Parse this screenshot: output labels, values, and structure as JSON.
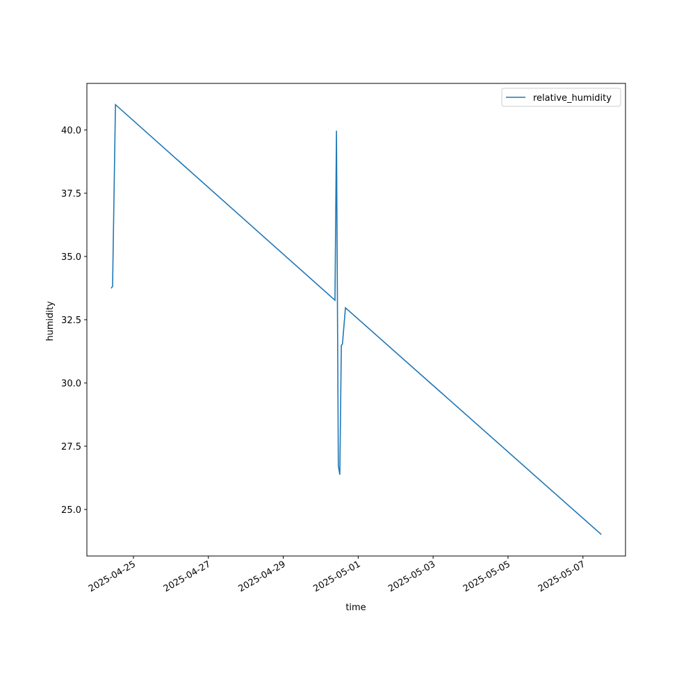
{
  "chart_data": {
    "type": "line",
    "x_label": "time",
    "y_label": "humidity",
    "x": [
      "2025-04-24T09:45",
      "2025-04-24T10:38",
      "2025-04-24T12:29",
      "2025-04-30T09:07",
      "2025-04-30T10:05",
      "2025-04-30T11:17",
      "2025-04-30T12:14",
      "2025-04-30T13:12",
      "2025-04-30T13:55",
      "2025-04-30T15:50",
      "2025-05-07T11:46"
    ],
    "series": [
      {
        "name": "relative_humidity",
        "color": "#1f77b4",
        "values": [
          33.74,
          33.82,
          41.0,
          33.27,
          39.97,
          26.73,
          26.37,
          31.48,
          31.54,
          32.97,
          24.01
        ]
      }
    ],
    "xlim": [
      "2025-04-23T18:10",
      "2025-05-08T03:16"
    ],
    "xticks": [
      "2025-04-25",
      "2025-04-27",
      "2025-04-29",
      "2025-05-01",
      "2025-05-03",
      "2025-05-05",
      "2025-05-07"
    ],
    "ylim": [
      23.16,
      41.84
    ],
    "yticks": [
      {
        "value": 25,
        "label": "25.0"
      },
      {
        "value": 27.5,
        "label": "27.5"
      },
      {
        "value": 30,
        "label": "30.0"
      },
      {
        "value": 32.5,
        "label": "32.5"
      },
      {
        "value": 35,
        "label": "35.0"
      },
      {
        "value": 37.5,
        "label": "37.5"
      },
      {
        "value": 40,
        "label": "40.0"
      }
    ],
    "grid": false,
    "legend": "upper right"
  }
}
